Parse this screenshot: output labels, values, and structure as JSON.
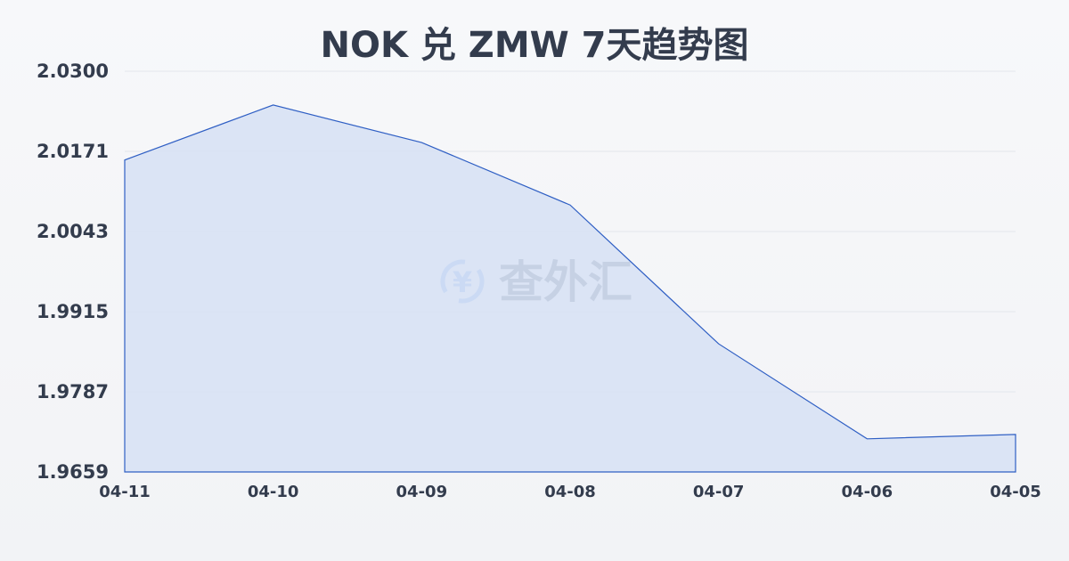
{
  "title": "NOK 兑 ZMW 7天趋势图",
  "watermark": {
    "text": "查外汇",
    "icon": "yen-exchange-icon"
  },
  "colors": {
    "line": "#2f5fc4",
    "fill": "#d6e0f5",
    "text": "#333c4d",
    "watermark_icon": "#8ab4f0"
  },
  "chart_data": {
    "type": "area",
    "title": "NOK 兑 ZMW 7天趋势图",
    "xlabel": "",
    "ylabel": "",
    "categories": [
      "04-11",
      "04-10",
      "04-09",
      "04-08",
      "04-07",
      "04-06",
      "04-05"
    ],
    "values": [
      2.0158,
      2.0246,
      2.0186,
      2.0086,
      1.9864,
      1.9712,
      1.9719
    ],
    "yticks": [
      "2.0300",
      "2.0171",
      "2.0043",
      "1.9915",
      "1.9787",
      "1.9659"
    ],
    "ylim": [
      1.9659,
      2.03
    ],
    "grid": true,
    "legend": null
  }
}
